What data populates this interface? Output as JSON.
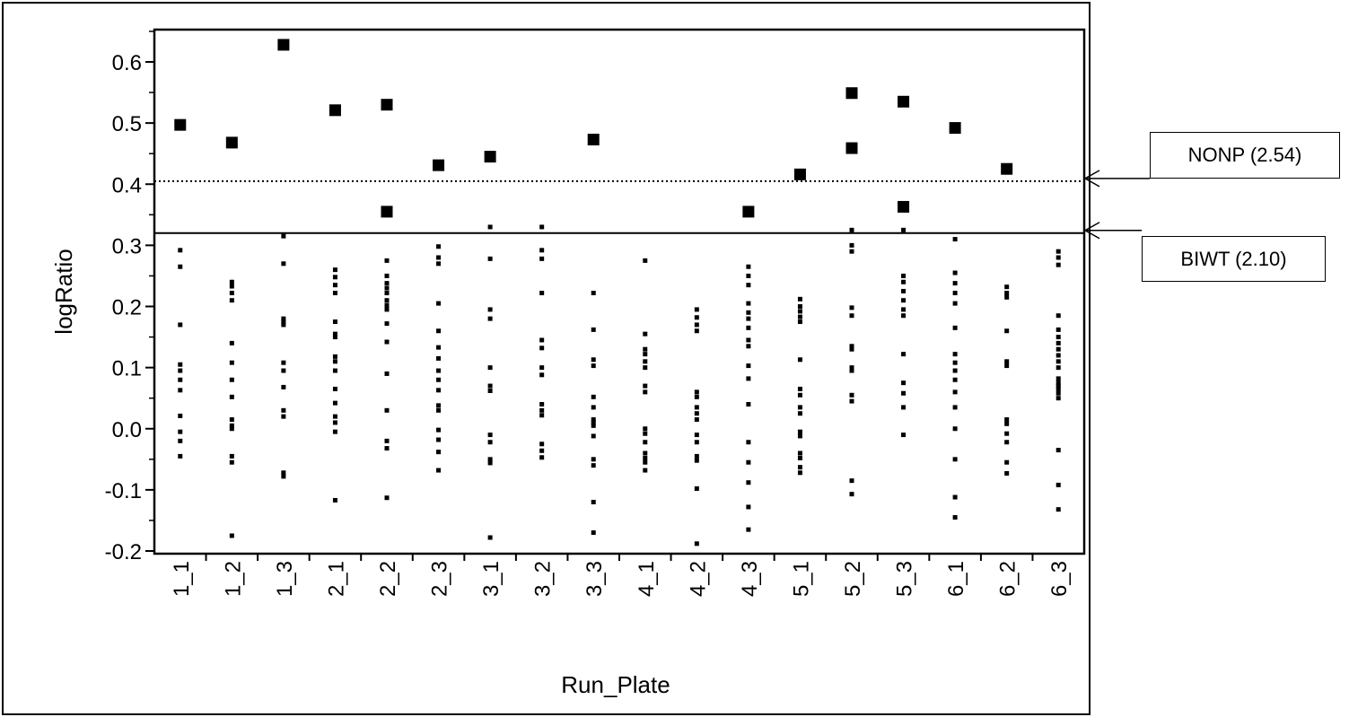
{
  "chart_data": {
    "type": "scatter",
    "xlabel": "Run_Plate",
    "ylabel": "logRatio",
    "ylim": [
      -0.2,
      0.65
    ],
    "yticks": [
      "0.6",
      "0.5",
      "0.4",
      "0.3",
      "0.2",
      "0.1",
      "0.0",
      "-0.1",
      "-0.2"
    ],
    "categories": [
      "1_1",
      "1_2",
      "1_3",
      "2_1",
      "2_2",
      "2_3",
      "3_1",
      "3_2",
      "3_3",
      "4_1",
      "4_2",
      "4_3",
      "5_1",
      "5_2",
      "5_3",
      "6_1",
      "6_2",
      "6_3"
    ],
    "reference_lines": [
      {
        "name": "NONP (2.54)",
        "y": 0.405,
        "style": "dotted"
      },
      {
        "name": "BIWT (2.10)",
        "y": 0.32,
        "style": "solid"
      }
    ],
    "series": [
      {
        "marker": "square",
        "points": [
          [
            "1_1",
            0.497
          ],
          [
            "1_2",
            0.468
          ],
          [
            "1_3",
            0.628
          ],
          [
            "2_1",
            0.521
          ],
          [
            "2_2",
            0.53
          ],
          [
            "2_2",
            0.355
          ],
          [
            "2_3",
            0.431
          ],
          [
            "3_1",
            0.445
          ],
          [
            "3_3",
            0.473
          ],
          [
            "4_3",
            0.355
          ],
          [
            "5_1",
            0.416
          ],
          [
            "5_2",
            0.549
          ],
          [
            "5_2",
            0.459
          ],
          [
            "5_3",
            0.535
          ],
          [
            "5_3",
            0.363
          ],
          [
            "6_1",
            0.492
          ],
          [
            "6_2",
            0.425
          ]
        ]
      },
      {
        "marker": "dot",
        "points": [
          [
            "1_1",
            0.292
          ],
          [
            "1_1",
            0.265
          ],
          [
            "1_1",
            0.17
          ],
          [
            "1_1",
            0.105
          ],
          [
            "1_1",
            0.095
          ],
          [
            "1_1",
            0.08
          ],
          [
            "1_1",
            0.063
          ],
          [
            "1_1",
            0.021
          ],
          [
            "1_1",
            -0.005
          ],
          [
            "1_1",
            -0.02
          ],
          [
            "1_1",
            -0.045
          ],
          [
            "1_2",
            0.24
          ],
          [
            "1_2",
            0.233
          ],
          [
            "1_2",
            0.222
          ],
          [
            "1_2",
            0.21
          ],
          [
            "1_2",
            0.14
          ],
          [
            "1_2",
            0.108
          ],
          [
            "1_2",
            0.08
          ],
          [
            "1_2",
            0.052
          ],
          [
            "1_2",
            0.015
          ],
          [
            "1_2",
            0.005
          ],
          [
            "1_2",
            0.0
          ],
          [
            "1_2",
            -0.045
          ],
          [
            "1_2",
            -0.055
          ],
          [
            "1_2",
            -0.175
          ],
          [
            "1_3",
            0.315
          ],
          [
            "1_3",
            0.27
          ],
          [
            "1_3",
            0.18
          ],
          [
            "1_3",
            0.175
          ],
          [
            "1_3",
            0.17
          ],
          [
            "1_3",
            0.108
          ],
          [
            "1_3",
            0.095
          ],
          [
            "1_3",
            0.068
          ],
          [
            "1_3",
            0.03
          ],
          [
            "1_3",
            0.02
          ],
          [
            "1_3",
            -0.072
          ],
          [
            "1_3",
            -0.078
          ],
          [
            "2_1",
            0.26
          ],
          [
            "2_1",
            0.248
          ],
          [
            "2_1",
            0.235
          ],
          [
            "2_1",
            0.222
          ],
          [
            "2_1",
            0.175
          ],
          [
            "2_1",
            0.155
          ],
          [
            "2_1",
            0.15
          ],
          [
            "2_1",
            0.118
          ],
          [
            "2_1",
            0.11
          ],
          [
            "2_1",
            0.095
          ],
          [
            "2_1",
            0.065
          ],
          [
            "2_1",
            0.042
          ],
          [
            "2_1",
            0.02
          ],
          [
            "2_1",
            0.01
          ],
          [
            "2_1",
            -0.005
          ],
          [
            "2_1",
            -0.117
          ],
          [
            "2_2",
            0.275
          ],
          [
            "2_2",
            0.25
          ],
          [
            "2_2",
            0.238
          ],
          [
            "2_2",
            0.23
          ],
          [
            "2_2",
            0.222
          ],
          [
            "2_2",
            0.21
          ],
          [
            "2_2",
            0.202
          ],
          [
            "2_2",
            0.195
          ],
          [
            "2_2",
            0.172
          ],
          [
            "2_2",
            0.142
          ],
          [
            "2_2",
            0.09
          ],
          [
            "2_2",
            0.03
          ],
          [
            "2_2",
            -0.02
          ],
          [
            "2_2",
            -0.032
          ],
          [
            "2_2",
            -0.113
          ],
          [
            "2_3",
            0.298
          ],
          [
            "2_3",
            0.28
          ],
          [
            "2_3",
            0.27
          ],
          [
            "2_3",
            0.205
          ],
          [
            "2_3",
            0.16
          ],
          [
            "2_3",
            0.133
          ],
          [
            "2_3",
            0.115
          ],
          [
            "2_3",
            0.095
          ],
          [
            "2_3",
            0.08
          ],
          [
            "2_3",
            0.063
          ],
          [
            "2_3",
            0.038
          ],
          [
            "2_3",
            0.03
          ],
          [
            "2_3",
            -0.002
          ],
          [
            "2_3",
            -0.018
          ],
          [
            "2_3",
            -0.038
          ],
          [
            "2_3",
            -0.068
          ],
          [
            "3_1",
            0.33
          ],
          [
            "3_1",
            0.278
          ],
          [
            "3_1",
            0.195
          ],
          [
            "3_1",
            0.18
          ],
          [
            "3_1",
            0.1
          ],
          [
            "3_1",
            0.07
          ],
          [
            "3_1",
            0.062
          ],
          [
            "3_1",
            -0.01
          ],
          [
            "3_1",
            -0.022
          ],
          [
            "3_1",
            -0.05
          ],
          [
            "3_1",
            -0.056
          ],
          [
            "3_1",
            -0.178
          ],
          [
            "3_2",
            0.33
          ],
          [
            "3_2",
            0.292
          ],
          [
            "3_2",
            0.278
          ],
          [
            "3_2",
            0.222
          ],
          [
            "3_2",
            0.145
          ],
          [
            "3_2",
            0.132
          ],
          [
            "3_2",
            0.1
          ],
          [
            "3_2",
            0.088
          ],
          [
            "3_2",
            0.04
          ],
          [
            "3_2",
            0.03
          ],
          [
            "3_2",
            0.022
          ],
          [
            "3_2",
            -0.025
          ],
          [
            "3_2",
            -0.036
          ],
          [
            "3_2",
            -0.047
          ],
          [
            "3_3",
            0.222
          ],
          [
            "3_3",
            0.162
          ],
          [
            "3_3",
            0.113
          ],
          [
            "3_3",
            0.103
          ],
          [
            "3_3",
            0.052
          ],
          [
            "3_3",
            0.035
          ],
          [
            "3_3",
            0.015
          ],
          [
            "3_3",
            0.01
          ],
          [
            "3_3",
            0.005
          ],
          [
            "3_3",
            -0.012
          ],
          [
            "3_3",
            -0.05
          ],
          [
            "3_3",
            -0.06
          ],
          [
            "3_3",
            -0.12
          ],
          [
            "3_3",
            -0.17
          ],
          [
            "4_1",
            0.275
          ],
          [
            "4_1",
            0.155
          ],
          [
            "4_1",
            0.13
          ],
          [
            "4_1",
            0.122
          ],
          [
            "4_1",
            0.11
          ],
          [
            "4_1",
            0.1
          ],
          [
            "4_1",
            0.07
          ],
          [
            "4_1",
            0.06
          ],
          [
            "4_1",
            0.0
          ],
          [
            "4_1",
            -0.008
          ],
          [
            "4_1",
            -0.022
          ],
          [
            "4_1",
            -0.04
          ],
          [
            "4_1",
            -0.048
          ],
          [
            "4_1",
            -0.055
          ],
          [
            "4_1",
            -0.068
          ],
          [
            "4_2",
            0.195
          ],
          [
            "4_2",
            0.182
          ],
          [
            "4_2",
            0.17
          ],
          [
            "4_2",
            0.16
          ],
          [
            "4_2",
            0.06
          ],
          [
            "4_2",
            0.052
          ],
          [
            "4_2",
            0.035
          ],
          [
            "4_2",
            0.025
          ],
          [
            "4_2",
            0.015
          ],
          [
            "4_2",
            -0.01
          ],
          [
            "4_2",
            -0.022
          ],
          [
            "4_2",
            -0.045
          ],
          [
            "4_2",
            -0.052
          ],
          [
            "4_2",
            -0.098
          ],
          [
            "4_2",
            -0.188
          ],
          [
            "4_3",
            0.265
          ],
          [
            "4_3",
            0.25
          ],
          [
            "4_3",
            0.235
          ],
          [
            "4_3",
            0.205
          ],
          [
            "4_3",
            0.19
          ],
          [
            "4_3",
            0.18
          ],
          [
            "4_3",
            0.165
          ],
          [
            "4_3",
            0.145
          ],
          [
            "4_3",
            0.135
          ],
          [
            "4_3",
            0.103
          ],
          [
            "4_3",
            0.082
          ],
          [
            "4_3",
            0.04
          ],
          [
            "4_3",
            -0.022
          ],
          [
            "4_3",
            -0.055
          ],
          [
            "4_3",
            -0.088
          ],
          [
            "4_3",
            -0.128
          ],
          [
            "4_3",
            -0.165
          ],
          [
            "5_1",
            0.212
          ],
          [
            "5_1",
            0.2
          ],
          [
            "5_1",
            0.192
          ],
          [
            "5_1",
            0.183
          ],
          [
            "5_1",
            0.175
          ],
          [
            "5_1",
            0.113
          ],
          [
            "5_1",
            0.065
          ],
          [
            "5_1",
            0.055
          ],
          [
            "5_1",
            0.035
          ],
          [
            "5_1",
            0.025
          ],
          [
            "5_1",
            -0.005
          ],
          [
            "5_1",
            -0.012
          ],
          [
            "5_1",
            -0.04
          ],
          [
            "5_1",
            -0.048
          ],
          [
            "5_1",
            -0.063
          ],
          [
            "5_1",
            -0.072
          ],
          [
            "5_2",
            0.325
          ],
          [
            "5_2",
            0.3
          ],
          [
            "5_2",
            0.29
          ],
          [
            "5_2",
            0.198
          ],
          [
            "5_2",
            0.185
          ],
          [
            "5_2",
            0.135
          ],
          [
            "5_2",
            0.13
          ],
          [
            "5_2",
            0.1
          ],
          [
            "5_2",
            0.095
          ],
          [
            "5_2",
            0.055
          ],
          [
            "5_2",
            0.045
          ],
          [
            "5_2",
            -0.085
          ],
          [
            "5_2",
            -0.107
          ],
          [
            "5_3",
            0.325
          ],
          [
            "5_3",
            0.25
          ],
          [
            "5_3",
            0.24
          ],
          [
            "5_3",
            0.225
          ],
          [
            "5_3",
            0.21
          ],
          [
            "5_3",
            0.195
          ],
          [
            "5_3",
            0.185
          ],
          [
            "5_3",
            0.122
          ],
          [
            "5_3",
            0.075
          ],
          [
            "5_3",
            0.058
          ],
          [
            "5_3",
            0.035
          ],
          [
            "5_3",
            -0.01
          ],
          [
            "6_1",
            0.31
          ],
          [
            "6_1",
            0.255
          ],
          [
            "6_1",
            0.238
          ],
          [
            "6_1",
            0.222
          ],
          [
            "6_1",
            0.205
          ],
          [
            "6_1",
            0.165
          ],
          [
            "6_1",
            0.122
          ],
          [
            "6_1",
            0.108
          ],
          [
            "6_1",
            0.095
          ],
          [
            "6_1",
            0.08
          ],
          [
            "6_1",
            0.06
          ],
          [
            "6_1",
            0.035
          ],
          [
            "6_1",
            0.0
          ],
          [
            "6_1",
            -0.05
          ],
          [
            "6_1",
            -0.112
          ],
          [
            "6_1",
            -0.145
          ],
          [
            "6_2",
            0.232
          ],
          [
            "6_2",
            0.222
          ],
          [
            "6_2",
            0.215
          ],
          [
            "6_2",
            0.16
          ],
          [
            "6_2",
            0.11
          ],
          [
            "6_2",
            0.103
          ],
          [
            "6_2",
            0.015
          ],
          [
            "6_2",
            0.008
          ],
          [
            "6_2",
            -0.008
          ],
          [
            "6_2",
            -0.022
          ],
          [
            "6_2",
            -0.055
          ],
          [
            "6_2",
            -0.073
          ],
          [
            "6_3",
            0.29
          ],
          [
            "6_3",
            0.28
          ],
          [
            "6_3",
            0.268
          ],
          [
            "6_3",
            0.185
          ],
          [
            "6_3",
            0.162
          ],
          [
            "6_3",
            0.15
          ],
          [
            "6_3",
            0.14
          ],
          [
            "6_3",
            0.13
          ],
          [
            "6_3",
            0.12
          ],
          [
            "6_3",
            0.11
          ],
          [
            "6_3",
            0.1
          ],
          [
            "6_3",
            0.082
          ],
          [
            "6_3",
            0.075
          ],
          [
            "6_3",
            0.07
          ],
          [
            "6_3",
            0.065
          ],
          [
            "6_3",
            0.058
          ],
          [
            "6_3",
            0.05
          ],
          [
            "6_3",
            -0.035
          ],
          [
            "6_3",
            -0.092
          ],
          [
            "6_3",
            -0.132
          ]
        ]
      }
    ],
    "grid": false
  }
}
